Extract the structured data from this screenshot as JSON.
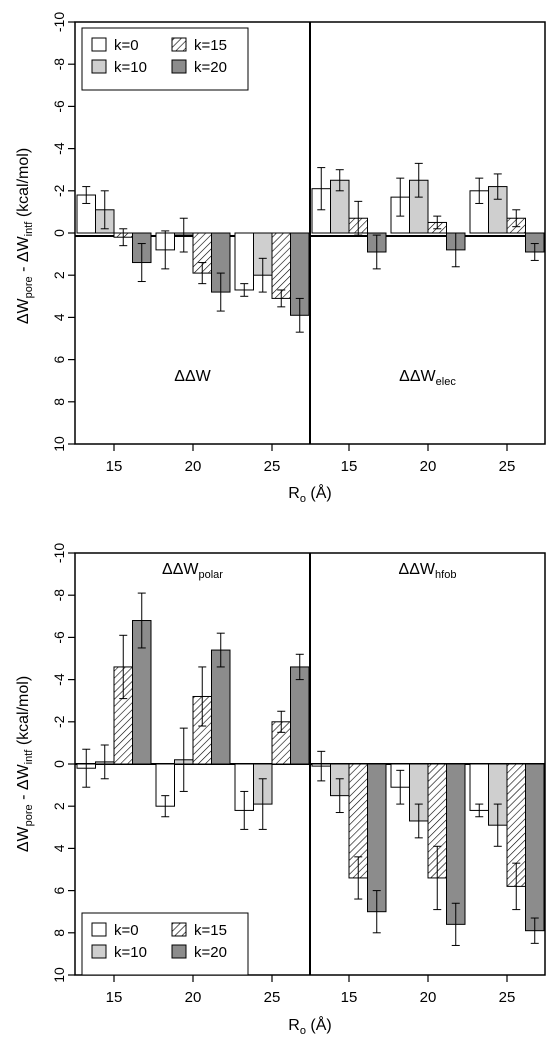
{
  "chart_data": [
    {
      "type": "bar",
      "ylabel": {
        "p1": "ΔW",
        "s1": "pore",
        "p2": " - ΔW",
        "s2": "intf",
        "p3": "  (kcal/mol)"
      },
      "xlabel": {
        "main": "R",
        "sub": "o",
        "rest": " (Å)"
      },
      "ylim": [
        10,
        -10
      ],
      "yticks": [
        "-10",
        "-8",
        "-6",
        "-4",
        "-2",
        "0",
        "2",
        "4",
        "6",
        "8",
        "10"
      ],
      "legend": {
        "placement": "top-left",
        "items": [
          {
            "label": "k=0",
            "fill": "#ffffff",
            "hatch": false
          },
          {
            "label": "k=15",
            "fill": "#ffffff",
            "hatch": true
          },
          {
            "label": "k=10",
            "fill": "#cfcfcf",
            "hatch": false
          },
          {
            "label": "k=20",
            "fill": "#8c8c8c",
            "hatch": false
          }
        ]
      },
      "series_names": [
        "k=0",
        "k=10",
        "k=15",
        "k=20"
      ],
      "panels": [
        {
          "label": {
            "main": "ΔΔW",
            "sub": ""
          },
          "categories": [
            "15",
            "20",
            "25"
          ],
          "values": [
            [
              -1.8,
              -1.1,
              0.2,
              1.4
            ],
            [
              0.8,
              0.1,
              1.9,
              2.8
            ],
            [
              2.7,
              2.0,
              3.1,
              3.9
            ]
          ],
          "errors": [
            [
              0.4,
              0.9,
              0.4,
              0.9
            ],
            [
              0.9,
              0.8,
              0.5,
              0.9
            ],
            [
              0.3,
              0.8,
              0.4,
              0.8
            ]
          ]
        },
        {
          "label": {
            "main": "ΔΔW",
            "sub": "elec"
          },
          "categories": [
            "15",
            "20",
            "25"
          ],
          "values": [
            [
              -2.1,
              -2.5,
              -0.7,
              0.9
            ],
            [
              -1.7,
              -2.5,
              -0.5,
              0.8
            ],
            [
              -2.0,
              -2.2,
              -0.7,
              0.9
            ]
          ],
          "errors": [
            [
              1.0,
              0.5,
              0.8,
              0.8
            ],
            [
              0.9,
              0.8,
              0.3,
              0.8
            ],
            [
              0.6,
              0.6,
              0.4,
              0.4
            ]
          ]
        }
      ]
    },
    {
      "type": "bar",
      "ylabel": {
        "p1": "ΔW",
        "s1": "pore",
        "p2": " - ΔW",
        "s2": "intf",
        "p3": "  (kcal/mol)"
      },
      "xlabel": {
        "main": "R",
        "sub": "o",
        "rest": " (Å)"
      },
      "ylim": [
        10,
        -10
      ],
      "yticks": [
        "-10",
        "-8",
        "-6",
        "-4",
        "-2",
        "0",
        "2",
        "4",
        "6",
        "8",
        "10"
      ],
      "legend": {
        "placement": "bottom-left",
        "items": [
          {
            "label": "k=0",
            "fill": "#ffffff",
            "hatch": false
          },
          {
            "label": "k=15",
            "fill": "#ffffff",
            "hatch": true
          },
          {
            "label": "k=10",
            "fill": "#cfcfcf",
            "hatch": false
          },
          {
            "label": "k=20",
            "fill": "#8c8c8c",
            "hatch": false
          }
        ]
      },
      "series_names": [
        "k=0",
        "k=10",
        "k=15",
        "k=20"
      ],
      "panels": [
        {
          "label": {
            "main": "ΔΔW",
            "sub": "polar"
          },
          "categories": [
            "15",
            "20",
            "25"
          ],
          "values": [
            [
              0.2,
              -0.1,
              -4.6,
              -6.8
            ],
            [
              2.0,
              -0.2,
              -3.2,
              -5.4
            ],
            [
              2.2,
              1.9,
              -2.0,
              -4.6
            ]
          ],
          "errors": [
            [
              0.9,
              0.8,
              1.5,
              1.3
            ],
            [
              0.5,
              1.5,
              1.4,
              0.8
            ],
            [
              0.9,
              1.2,
              0.5,
              0.6
            ]
          ]
        },
        {
          "label": {
            "main": "ΔΔW",
            "sub": "hfob"
          },
          "categories": [
            "15",
            "20",
            "25"
          ],
          "values": [
            [
              0.1,
              1.5,
              5.4,
              7.0
            ],
            [
              1.1,
              2.7,
              5.4,
              7.6
            ],
            [
              2.2,
              2.9,
              5.8,
              7.9
            ]
          ],
          "errors": [
            [
              0.7,
              0.8,
              1.0,
              1.0
            ],
            [
              0.8,
              0.8,
              1.5,
              1.0
            ],
            [
              0.3,
              1.0,
              1.1,
              0.6
            ]
          ]
        }
      ]
    }
  ]
}
